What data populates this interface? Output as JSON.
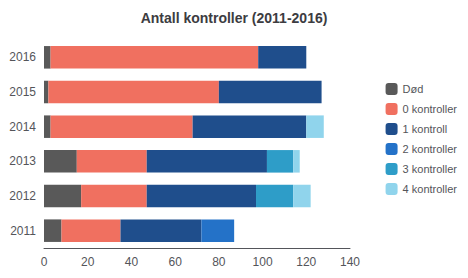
{
  "chart_data": {
    "type": "bar",
    "orientation": "horizontal",
    "stacked": true,
    "title": "Antall kontroller (2011-2016)",
    "categories": [
      "2011",
      "2012",
      "2013",
      "2014",
      "2015",
      "2016"
    ],
    "series": [
      {
        "name": "Død",
        "color": "#595959",
        "values": [
          8,
          17,
          15,
          3,
          2,
          3
        ]
      },
      {
        "name": "0 kontroller",
        "color": "#F07060",
        "values": [
          27,
          30,
          32,
          65,
          78,
          95
        ]
      },
      {
        "name": "1 kontroll",
        "color": "#1F4E8C",
        "values": [
          37,
          50,
          55,
          52,
          47,
          22
        ]
      },
      {
        "name": "2 kontroller",
        "color": "#2472C8",
        "values": [
          15,
          0,
          0,
          0,
          0,
          0
        ]
      },
      {
        "name": "3 kontroller",
        "color": "#2E9DC8",
        "values": [
          0,
          17,
          12,
          0,
          0,
          0
        ]
      },
      {
        "name": "4 kontroller",
        "color": "#90D4EC",
        "values": [
          0,
          8,
          3,
          8,
          0,
          0
        ]
      }
    ],
    "xlim": [
      0,
      140
    ],
    "xticks": [
      0,
      20,
      40,
      60,
      80,
      100,
      120,
      140
    ],
    "grid": false,
    "legend": "right"
  }
}
